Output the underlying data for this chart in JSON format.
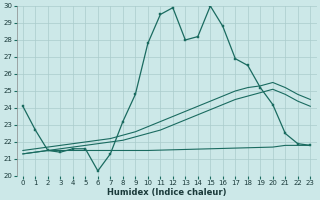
{
  "xlabel": "Humidex (Indice chaleur)",
  "xlim": [
    -0.5,
    23.5
  ],
  "ylim": [
    20,
    30
  ],
  "yticks": [
    20,
    21,
    22,
    23,
    24,
    25,
    26,
    27,
    28,
    29,
    30
  ],
  "xticks": [
    0,
    1,
    2,
    3,
    4,
    5,
    6,
    7,
    8,
    9,
    10,
    11,
    12,
    13,
    14,
    15,
    16,
    17,
    18,
    19,
    20,
    21,
    22,
    23
  ],
  "bg_color": "#cce8e8",
  "grid_color": "#aacccc",
  "line_color": "#1a6b60",
  "line1_x": [
    0,
    1,
    2,
    3,
    4,
    5,
    6,
    7,
    8,
    9,
    10,
    11,
    12,
    13,
    14,
    15,
    16,
    17,
    18,
    19,
    20,
    21,
    22,
    23
  ],
  "line1_y": [
    24.1,
    22.7,
    21.5,
    21.4,
    21.6,
    21.6,
    20.3,
    21.3,
    23.2,
    24.8,
    27.8,
    29.5,
    29.9,
    28.0,
    28.2,
    30.0,
    28.8,
    26.9,
    26.5,
    25.2,
    24.2,
    22.5,
    21.9,
    21.8
  ],
  "line2_x": [
    0,
    1,
    2,
    3,
    4,
    5,
    6,
    7,
    8,
    9,
    10,
    11,
    12,
    13,
    14,
    15,
    16,
    17,
    18,
    19,
    20,
    21,
    22,
    23
  ],
  "line2_y": [
    21.5,
    21.6,
    21.7,
    21.8,
    21.9,
    22.0,
    22.1,
    22.2,
    22.4,
    22.6,
    22.9,
    23.2,
    23.5,
    23.8,
    24.1,
    24.4,
    24.7,
    25.0,
    25.2,
    25.3,
    25.5,
    25.2,
    24.8,
    24.5
  ],
  "line3_x": [
    0,
    1,
    2,
    3,
    4,
    5,
    6,
    7,
    8,
    9,
    10,
    11,
    12,
    13,
    14,
    15,
    16,
    17,
    18,
    19,
    20,
    21,
    22,
    23
  ],
  "line3_y": [
    21.3,
    21.4,
    21.5,
    21.6,
    21.7,
    21.8,
    21.9,
    22.0,
    22.1,
    22.3,
    22.5,
    22.7,
    23.0,
    23.3,
    23.6,
    23.9,
    24.2,
    24.5,
    24.7,
    24.9,
    25.1,
    24.8,
    24.4,
    24.1
  ],
  "line4_x": [
    0,
    2,
    4,
    5,
    6,
    7,
    8,
    10,
    15,
    20,
    21,
    22,
    23
  ],
  "line4_y": [
    21.3,
    21.5,
    21.5,
    21.5,
    21.5,
    21.5,
    21.5,
    21.5,
    21.6,
    21.7,
    21.8,
    21.8,
    21.8
  ]
}
